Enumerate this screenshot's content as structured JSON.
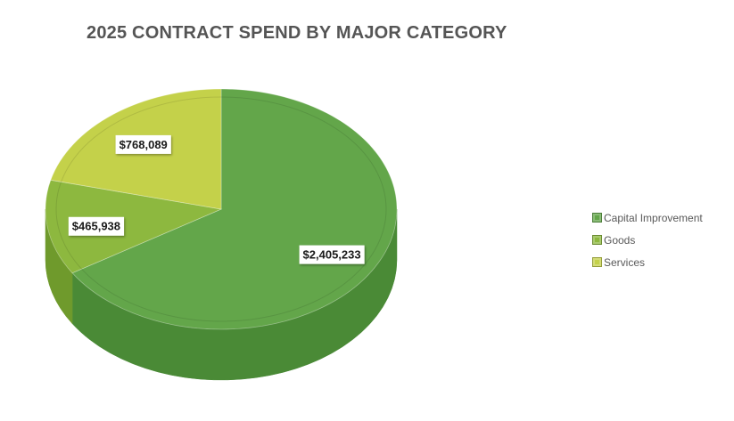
{
  "chart_data": {
    "type": "pie",
    "style": "3d-pie",
    "title": "2025 CONTRACT SPEND BY MAJOR CATEGORY",
    "categories": [
      "Capital Improvement",
      "Goods",
      "Services"
    ],
    "values": [
      2405233,
      465938,
      768089
    ],
    "data_labels": [
      "$2,405,233",
      "$465,938",
      "$768,089"
    ],
    "colors": [
      "#63a64a",
      "#8db83f",
      "#c4d14a"
    ],
    "side_colors": [
      "#4a8a36",
      "#6f9a2c",
      "#a3b034"
    ],
    "legend_position": "right"
  }
}
